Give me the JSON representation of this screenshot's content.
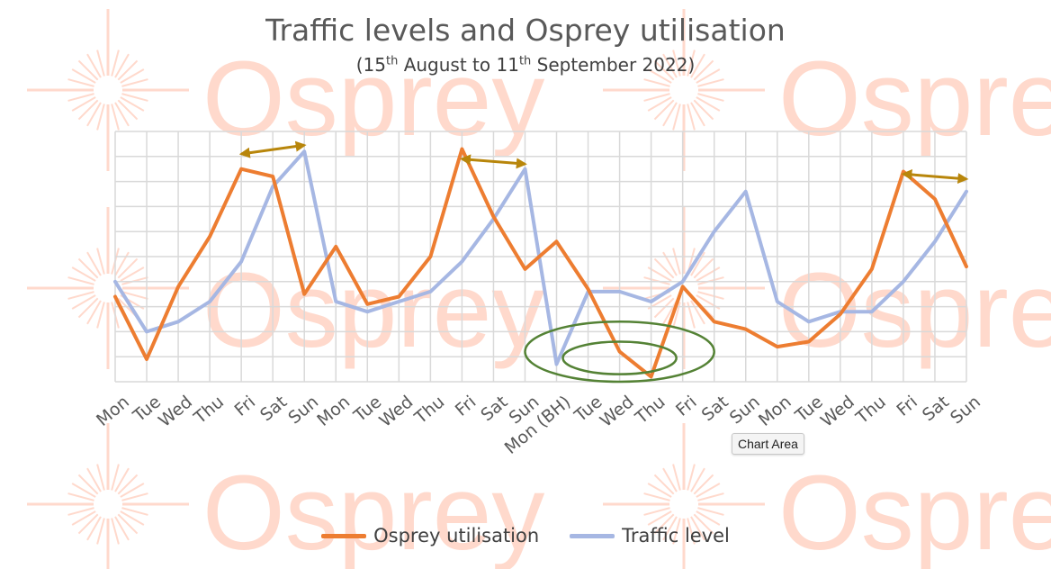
{
  "chart_data": {
    "type": "line",
    "title": "Traffic levels and Osprey utilisation",
    "subtitle": {
      "prefix": "(15",
      "sup1": "th",
      "middle": " August to 11",
      "sup2": "th",
      "suffix": " September 2022)"
    },
    "categories": [
      "Mon",
      "Tue",
      "Wed",
      "Thu",
      "Fri",
      "Sat",
      "Sun",
      "Mon",
      "Tue",
      "Wed",
      "Thu",
      "Fri",
      "Sat",
      "Sun",
      "Mon (BH)",
      "Tue",
      "Wed",
      "Thu",
      "Fri",
      "Sat",
      "Sun",
      "Mon",
      "Tue",
      "Wed",
      "Thu",
      "Fri",
      "Sat",
      "Sun"
    ],
    "ylim": [
      0,
      10
    ],
    "grid": true,
    "legend_position": "bottom",
    "series": [
      {
        "name": "Osprey utilisation",
        "color": "#ED7D31",
        "values": [
          3.4,
          0.9,
          3.8,
          5.8,
          8.5,
          8.2,
          3.5,
          5.4,
          3.1,
          3.4,
          5.0,
          9.3,
          6.6,
          4.5,
          5.6,
          3.7,
          1.2,
          0.2,
          3.8,
          2.4,
          2.1,
          1.4,
          1.6,
          2.7,
          4.5,
          8.4,
          7.3,
          4.6
        ]
      },
      {
        "name": "Traffic level",
        "color": "#A6B7E3",
        "values": [
          4.0,
          2.0,
          2.4,
          3.2,
          4.8,
          7.8,
          9.2,
          3.2,
          2.8,
          3.2,
          3.6,
          4.8,
          6.5,
          8.5,
          0.7,
          3.6,
          3.6,
          3.2,
          4.0,
          6.0,
          7.6,
          3.2,
          2.4,
          2.8,
          2.8,
          4.0,
          5.6,
          7.6
        ]
      }
    ],
    "annotations": [
      {
        "kind": "double-arrow",
        "color": "#B8860B",
        "from": 4,
        "to": 6,
        "level": 9.1
      },
      {
        "kind": "double-arrow",
        "color": "#B8860B",
        "from": 11,
        "to": 13,
        "level": 8.9
      },
      {
        "kind": "double-arrow",
        "color": "#B8860B",
        "from": 25,
        "to": 27,
        "level": 8.3
      },
      {
        "kind": "ellipse",
        "color": "#548235",
        "x_range": [
          13,
          19
        ],
        "y_range": [
          0,
          2.4
        ]
      },
      {
        "kind": "ellipse",
        "color": "#548235",
        "x_range": [
          14.2,
          17.8
        ],
        "y_range": [
          0.3,
          1.6
        ]
      }
    ]
  },
  "watermark": {
    "text": "Osprey",
    "color": "#FFD9CC"
  },
  "tooltip": {
    "text": "Chart Area"
  }
}
